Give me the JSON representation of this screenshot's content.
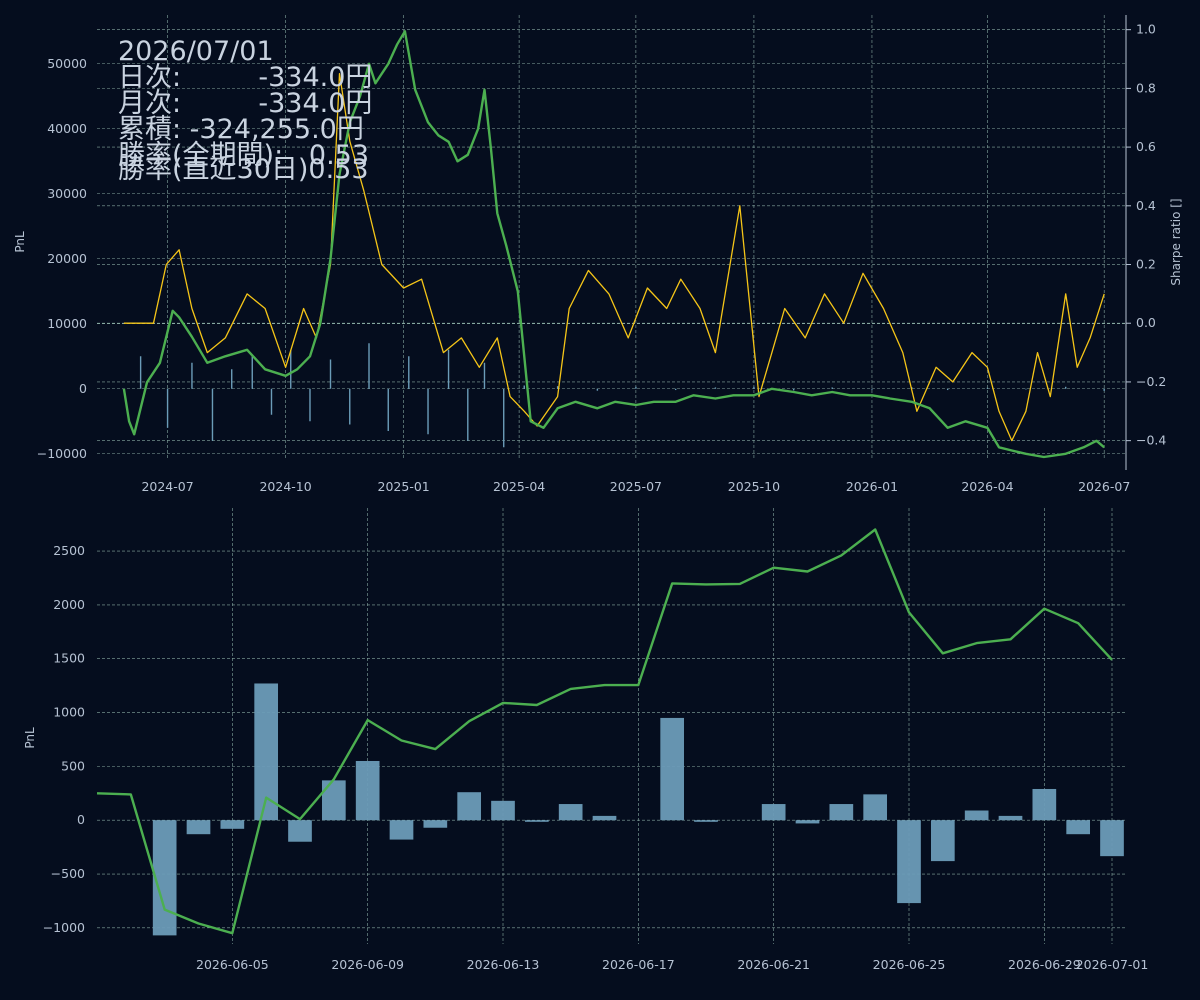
{
  "info": {
    "date": "2026/07/01",
    "daily": "日次:         -334.0円",
    "monthly": "月次:         -334.0円",
    "cumulative": "累積: -324,255.0円",
    "winrate_all": "勝率(全期間):   0.53",
    "winrate_30d": "勝率(直近30日)0.53"
  },
  "colors": {
    "background": "#050d1e",
    "green": "#4caf50",
    "yellow": "#f5c518",
    "bar": "#6b9cb8",
    "grid": "#86a8a0",
    "text": "#b6c2d3"
  },
  "chart_data": [
    {
      "type": "line",
      "ylabel": "PnL",
      "ylabel2": "Sharpe ratio []",
      "ylim": [
        -12500,
        57500
      ],
      "y2lim": [
        -0.5,
        1.05
      ],
      "xlim": [
        "2024-05-07",
        "2026-07-18"
      ],
      "yticks": [
        -10000,
        0,
        10000,
        20000,
        30000,
        40000,
        50000
      ],
      "y2ticks": [
        -0.4,
        -0.2,
        0.0,
        0.2,
        0.4,
        0.6,
        0.8,
        1.0
      ],
      "xticks": [
        "2024-07",
        "2024-10",
        "2025-01",
        "2025-04",
        "2025-07",
        "2025-10",
        "2026-01",
        "2026-04",
        "2026-07"
      ],
      "grid": true,
      "series": [
        {
          "role": "cumulative-pnl-green",
          "axis": "left",
          "x": [
            "2024-05-28",
            "2024-06-01",
            "2024-06-05",
            "2024-06-15",
            "2024-06-25",
            "2024-07-05",
            "2024-07-10",
            "2024-07-20",
            "2024-08-01",
            "2024-08-15",
            "2024-09-01",
            "2024-09-15",
            "2024-10-01",
            "2024-10-10",
            "2024-10-20",
            "2024-10-28",
            "2024-11-05",
            "2024-11-12",
            "2024-11-20",
            "2024-11-28",
            "2024-12-05",
            "2024-12-10",
            "2024-12-20",
            "2024-12-27",
            "2025-01-02",
            "2025-01-10",
            "2025-01-20",
            "2025-01-28",
            "2025-02-05",
            "2025-02-12",
            "2025-02-20",
            "2025-02-28",
            "2025-03-05",
            "2025-03-10",
            "2025-03-15",
            "2025-03-22",
            "2025-03-31",
            "2025-04-10",
            "2025-04-20",
            "2025-05-01",
            "2025-05-15",
            "2025-06-01",
            "2025-06-15",
            "2025-07-01",
            "2025-07-15",
            "2025-08-01",
            "2025-08-15",
            "2025-09-01",
            "2025-09-15",
            "2025-10-01",
            "2025-10-15",
            "2025-11-01",
            "2025-11-15",
            "2025-12-01",
            "2025-12-15",
            "2026-01-01",
            "2026-01-15",
            "2026-02-01",
            "2026-02-15",
            "2026-03-01",
            "2026-03-15",
            "2026-04-01",
            "2026-04-10",
            "2026-04-20",
            "2026-05-01",
            "2026-05-15",
            "2026-06-01",
            "2026-06-15",
            "2026-06-25",
            "2026-07-01"
          ],
          "values": [
            0,
            -5000,
            -7000,
            1000,
            4000,
            12000,
            11000,
            8000,
            4000,
            5000,
            6000,
            3000,
            2000,
            3000,
            5000,
            10000,
            20000,
            33000,
            41000,
            45000,
            50000,
            47000,
            50000,
            53000,
            55000,
            46000,
            41000,
            39000,
            38000,
            35000,
            36000,
            40000,
            46000,
            37000,
            27000,
            22000,
            15000,
            -5000,
            -6000,
            -3000,
            -2000,
            -3000,
            -2000,
            -2500,
            -2000,
            -2000,
            -1000,
            -1500,
            -1000,
            -1000,
            0,
            -500,
            -1000,
            -500,
            -1000,
            -1000,
            -1500,
            -2000,
            -3000,
            -6000,
            -5000,
            -6000,
            -9000,
            -9500,
            -10000,
            -10500,
            -10000,
            -9000,
            -8000,
            -9000
          ]
        },
        {
          "role": "sharpe-ratio-yellow",
          "axis": "right",
          "x": [
            "2024-05-28",
            "2024-06-20",
            "2024-06-30",
            "2024-07-10",
            "2024-07-20",
            "2024-08-01",
            "2024-08-15",
            "2024-09-01",
            "2024-09-15",
            "2024-10-01",
            "2024-10-15",
            "2024-10-25",
            "2024-11-05",
            "2024-11-12",
            "2024-11-20",
            "2024-12-01",
            "2024-12-15",
            "2025-01-01",
            "2025-01-15",
            "2025-02-01",
            "2025-02-15",
            "2025-03-01",
            "2025-03-15",
            "2025-03-25",
            "2025-04-05",
            "2025-04-15",
            "2025-05-01",
            "2025-05-10",
            "2025-05-25",
            "2025-06-10",
            "2025-06-25",
            "2025-07-10",
            "2025-07-25",
            "2025-08-05",
            "2025-08-20",
            "2025-09-01",
            "2025-09-20",
            "2025-10-05",
            "2025-10-15",
            "2025-10-25",
            "2025-11-10",
            "2025-11-25",
            "2025-12-10",
            "2025-12-25",
            "2026-01-10",
            "2026-01-25",
            "2026-02-05",
            "2026-02-20",
            "2026-03-05",
            "2026-03-20",
            "2026-04-01",
            "2026-04-10",
            "2026-04-20",
            "2026-05-01",
            "2026-05-10",
            "2026-05-20",
            "2026-06-01",
            "2026-06-10",
            "2026-06-20",
            "2026-07-01"
          ],
          "values": [
            0,
            0,
            0.2,
            0.25,
            0.05,
            -0.1,
            -0.05,
            0.1,
            0.05,
            -0.15,
            0.05,
            -0.05,
            0.2,
            0.85,
            0.62,
            0.45,
            0.2,
            0.12,
            0.15,
            -0.1,
            -0.05,
            -0.15,
            -0.05,
            -0.25,
            -0.3,
            -0.35,
            -0.25,
            0.05,
            0.18,
            0.1,
            -0.05,
            0.12,
            0.05,
            0.15,
            0.05,
            -0.1,
            0.4,
            -0.25,
            -0.1,
            0.05,
            -0.05,
            0.1,
            0.0,
            0.17,
            0.05,
            -0.1,
            -0.3,
            -0.15,
            -0.2,
            -0.1,
            -0.15,
            -0.3,
            -0.4,
            -0.3,
            -0.1,
            -0.25,
            0.1,
            -0.15,
            -0.05,
            0.1
          ]
        },
        {
          "role": "daily-pnl-bars",
          "axis": "left",
          "type": "bar",
          "x": [
            "2024-06-10",
            "2024-07-01",
            "2024-07-20",
            "2024-08-05",
            "2024-08-20",
            "2024-09-05",
            "2024-09-20",
            "2024-10-05",
            "2024-10-20",
            "2024-11-05",
            "2024-11-20",
            "2024-12-05",
            "2024-12-20",
            "2025-01-05",
            "2025-01-20",
            "2025-02-05",
            "2025-02-20",
            "2025-03-05",
            "2025-03-20",
            "2025-04-05",
            "2025-05-01",
            "2025-06-01",
            "2025-07-01",
            "2025-08-01",
            "2025-09-01",
            "2025-10-01",
            "2025-11-01",
            "2025-12-01",
            "2026-01-01",
            "2026-02-01",
            "2026-03-01",
            "2026-04-01",
            "2026-05-01",
            "2026-06-01",
            "2026-07-01"
          ],
          "values": [
            5000,
            -6000,
            4000,
            -8000,
            3000,
            5000,
            -4000,
            6000,
            -5000,
            4500,
            -5500,
            7000,
            -6500,
            5000,
            -7000,
            6000,
            -8000,
            4000,
            -9000,
            500,
            400,
            -300,
            300,
            -200,
            200,
            300,
            -250,
            200,
            -150,
            250,
            -200,
            150,
            -100,
            300,
            -334
          ]
        }
      ]
    },
    {
      "type": "bar",
      "ylabel": "PnL",
      "ylim": [
        -1150,
        2900
      ],
      "xlim": [
        "2026-06-01",
        "2026-07-01"
      ],
      "yticks": [
        -1000,
        -500,
        0,
        500,
        1000,
        1500,
        2000,
        2500
      ],
      "xticks": [
        "2026-06-05",
        "2026-06-09",
        "2026-06-13",
        "2026-06-17",
        "2026-06-21",
        "2026-06-25",
        "2026-06-29",
        "2026-07-01"
      ],
      "grid": true,
      "categories": [
        "2026-06-01",
        "2026-06-02",
        "2026-06-03",
        "2026-06-04",
        "2026-06-05",
        "2026-06-06",
        "2026-06-07",
        "2026-06-08",
        "2026-06-09",
        "2026-06-10",
        "2026-06-11",
        "2026-06-12",
        "2026-06-13",
        "2026-06-14",
        "2026-06-15",
        "2026-06-16",
        "2026-06-17",
        "2026-06-18",
        "2026-06-19",
        "2026-06-20",
        "2026-06-21",
        "2026-06-22",
        "2026-06-23",
        "2026-06-24",
        "2026-06-25",
        "2026-06-26",
        "2026-06-27",
        "2026-06-28",
        "2026-06-29",
        "2026-06-30",
        "2026-07-01"
      ],
      "series": [
        {
          "role": "daily-pnl-bars",
          "values": [
            0,
            0,
            -1070,
            -130,
            -80,
            1270,
            -200,
            370,
            550,
            -180,
            -70,
            260,
            180,
            -15,
            150,
            40,
            0,
            950,
            -15,
            0,
            150,
            -30,
            150,
            240,
            -770,
            -380,
            90,
            40,
            290,
            -130,
            -334
          ]
        },
        {
          "role": "cumulative-pnl-line",
          "values": [
            250,
            240,
            -830,
            -960,
            -1050,
            210,
            10,
            380,
            930,
            740,
            660,
            920,
            1090,
            1070,
            1220,
            1255,
            1255,
            2200,
            2190,
            2195,
            2345,
            2310,
            2460,
            2700,
            1930,
            1550,
            1645,
            1680,
            1965,
            1830,
            1490
          ]
        }
      ]
    }
  ]
}
